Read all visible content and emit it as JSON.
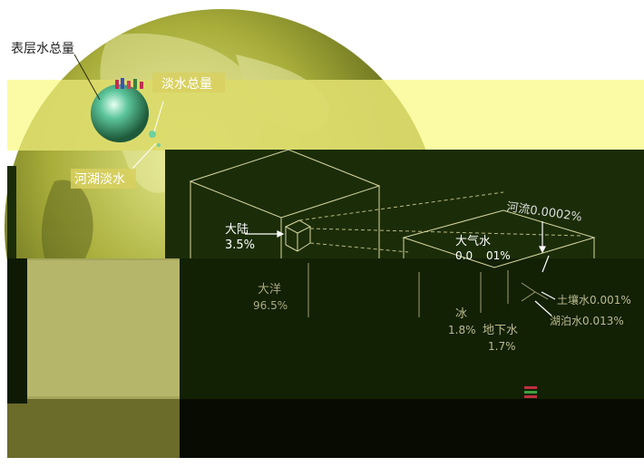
{
  "labels": {
    "surface_total": "表层水总量",
    "fresh_total": "淡水总量",
    "lake_river_fresh": "河湖淡水",
    "continent": "大陆",
    "continent_pct": "3.5%",
    "river": "河流0.0002%",
    "atmosphere": "大气水",
    "atmosphere_pct_a": "0.0",
    "atmosphere_pct_b": "01%",
    "ocean": "大洋",
    "ocean_pct": "96.5%",
    "ice": "冰",
    "ice_pct": "1.8%",
    "groundwater": "地下水",
    "groundwater_pct": "1.7%",
    "soil_water": "土壤水0.001%",
    "lake_water": "湖泊水0.013%"
  },
  "colors": {
    "dark_panel": "#1b2d08",
    "yellow_band": "#fbfb9a",
    "globe_light": "#d8e07a",
    "globe_dark": "#3c4410",
    "label_box": "#d8d060",
    "line_color": "#e8e8b0"
  }
}
